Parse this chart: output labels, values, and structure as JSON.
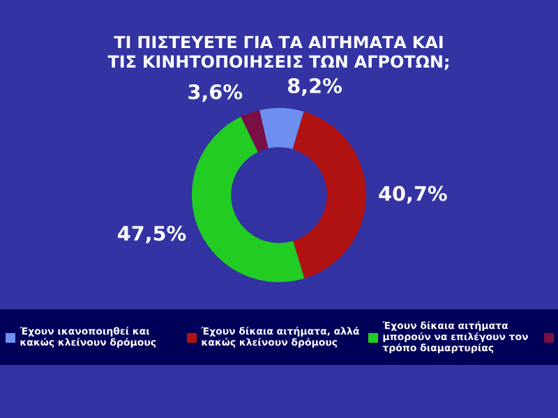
{
  "chart_data": {
    "type": "donut",
    "title": "ΤΙ ΠΙΣΤΕΥΕΤΕ ΓΙΑ ΤΑ ΑΙΤΗΜΑΤΑ ΚΑΙ ΤΙΣ ΚΙΝΗΤΟΠΟΙΗΣΕΙΣ ΤΩΝ ΑΓΡΟΤΩΝ;",
    "categories": [
      "Έχουν ικανοποιηθεί και κακώς κλείνουν δρόμους",
      "Έχουν δίκαια αιτήματα, αλλά κακώς κλείνουν δρόμους",
      "Έχουν δίκαια αιτήματα μπορούν να επιλέγουν τον τρόπο διαμαρτυρίας",
      null
    ],
    "values": [
      8.2,
      40.7,
      47.5,
      3.6
    ],
    "colors": [
      "#6f8ff0",
      "#b01212",
      "#22cc22",
      "#7a1045"
    ],
    "value_labels": [
      "8,2%",
      "40,7%",
      "47,5%",
      "3,6%"
    ],
    "legend": "bottom"
  }
}
